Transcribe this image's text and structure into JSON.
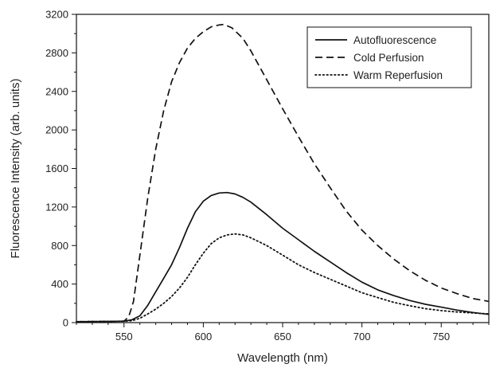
{
  "chart_data": {
    "type": "line",
    "title": "",
    "xlabel": "Wavelength (nm)",
    "ylabel": "Fluorescence Intensity (arb. units)",
    "xlim": [
      520,
      780
    ],
    "ylim": [
      0,
      3200
    ],
    "xticks": [
      550,
      600,
      650,
      700,
      750
    ],
    "yticks": [
      0,
      400,
      800,
      1200,
      1600,
      2000,
      2400,
      2800,
      3200
    ],
    "grid": false,
    "legend_position": "top-right",
    "series": [
      {
        "name": "Autofluorescence",
        "style": "solid",
        "color": "#111111",
        "x": [
          520,
          540,
          550,
          555,
          560,
          565,
          570,
          575,
          580,
          585,
          590,
          595,
          600,
          605,
          610,
          615,
          620,
          625,
          630,
          640,
          650,
          660,
          670,
          680,
          690,
          700,
          710,
          720,
          730,
          740,
          750,
          760,
          770,
          780
        ],
        "y": [
          10,
          12,
          15,
          30,
          70,
          180,
          320,
          460,
          600,
          780,
          980,
          1150,
          1260,
          1320,
          1345,
          1350,
          1335,
          1300,
          1250,
          1120,
          980,
          860,
          740,
          630,
          520,
          420,
          340,
          280,
          230,
          190,
          160,
          130,
          105,
          85
        ]
      },
      {
        "name": "Cold Perfusion",
        "style": "dashed",
        "color": "#111111",
        "x": [
          520,
          540,
          550,
          553,
          556,
          560,
          565,
          570,
          575,
          580,
          585,
          590,
          595,
          600,
          605,
          610,
          613,
          618,
          625,
          630,
          640,
          650,
          660,
          670,
          680,
          690,
          700,
          710,
          720,
          730,
          740,
          750,
          760,
          770,
          780
        ],
        "y": [
          10,
          12,
          15,
          60,
          220,
          700,
          1300,
          1800,
          2200,
          2500,
          2700,
          2850,
          2950,
          3020,
          3070,
          3090,
          3095,
          3060,
          2950,
          2820,
          2520,
          2220,
          1930,
          1650,
          1400,
          1160,
          960,
          800,
          660,
          540,
          440,
          360,
          300,
          250,
          220
        ]
      },
      {
        "name": "Warm Reperfusion",
        "style": "dotted",
        "color": "#111111",
        "x": [
          520,
          540,
          550,
          555,
          560,
          565,
          570,
          575,
          580,
          585,
          590,
          595,
          600,
          605,
          610,
          615,
          620,
          625,
          630,
          640,
          650,
          660,
          670,
          680,
          690,
          700,
          710,
          720,
          730,
          740,
          750,
          760,
          770,
          780
        ],
        "y": [
          10,
          12,
          15,
          20,
          45,
          90,
          140,
          200,
          270,
          360,
          470,
          600,
          720,
          820,
          880,
          910,
          920,
          910,
          880,
          800,
          700,
          600,
          520,
          450,
          380,
          310,
          260,
          210,
          175,
          145,
          125,
          110,
          100,
          90
        ]
      }
    ]
  }
}
